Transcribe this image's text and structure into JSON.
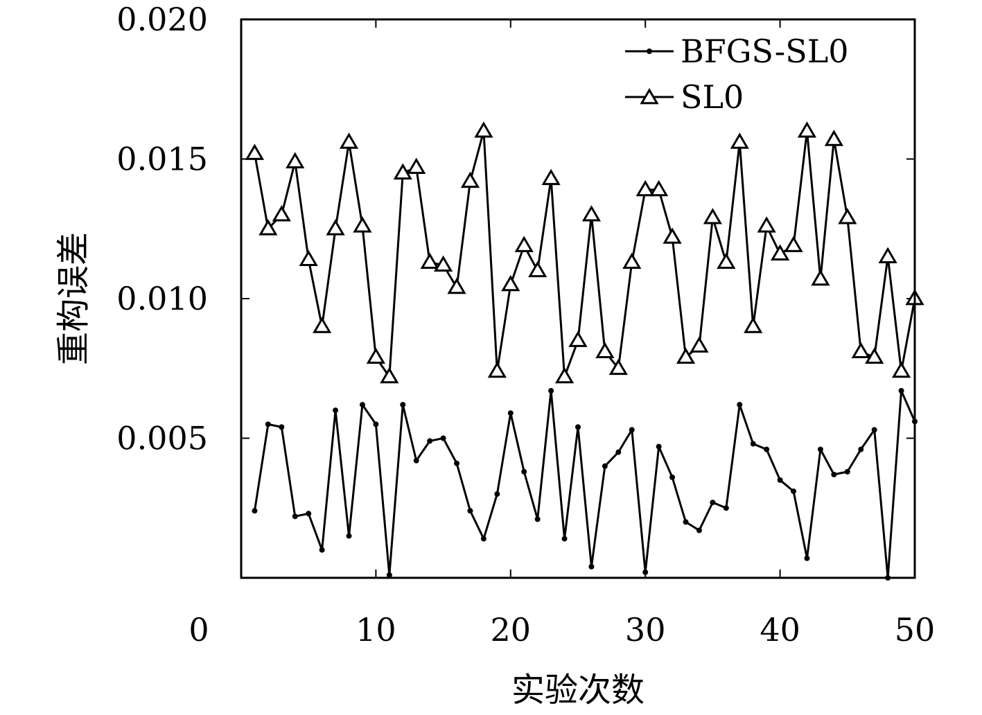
{
  "chart_data": {
    "type": "line",
    "xlabel": "实验次数",
    "ylabel": "重构误差",
    "xlim": [
      0,
      50
    ],
    "ylim": [
      0,
      0.02
    ],
    "x_ticks": [
      "0",
      "10",
      "20",
      "30",
      "40",
      "50"
    ],
    "y_ticks": [
      "0.005",
      "0.010",
      "0.015",
      "0.020"
    ],
    "grid": false,
    "legend_position": "top-right",
    "x": [
      1,
      2,
      3,
      4,
      5,
      6,
      7,
      8,
      9,
      10,
      11,
      12,
      13,
      14,
      15,
      16,
      17,
      18,
      19,
      20,
      21,
      22,
      23,
      24,
      25,
      26,
      27,
      28,
      29,
      30,
      31,
      32,
      33,
      34,
      35,
      36,
      37,
      38,
      39,
      40,
      41,
      42,
      43,
      44,
      45,
      46,
      47,
      48,
      49,
      50
    ],
    "series": [
      {
        "name": "BFGS-SL0",
        "marker": "dot",
        "values": [
          0.0024,
          0.0055,
          0.0054,
          0.0022,
          0.0023,
          0.001,
          0.006,
          0.0015,
          0.0062,
          0.0055,
          0.0001,
          0.0062,
          0.0042,
          0.0049,
          0.005,
          0.0041,
          0.0024,
          0.0014,
          0.003,
          0.0059,
          0.0038,
          0.0021,
          0.0067,
          0.0014,
          0.0054,
          0.0004,
          0.004,
          0.0045,
          0.0053,
          0.0002,
          0.0047,
          0.0036,
          0.002,
          0.0017,
          0.0027,
          0.0025,
          0.0062,
          0.0048,
          0.0046,
          0.0035,
          0.0031,
          0.0007,
          0.0046,
          0.0037,
          0.0038,
          0.0046,
          0.0053,
          0.0,
          0.0067,
          0.0056
        ]
      },
      {
        "name": "SL0",
        "marker": "triangle",
        "values": [
          0.0152,
          0.0125,
          0.013,
          0.0149,
          0.0114,
          0.009,
          0.0125,
          0.0156,
          0.0126,
          0.0079,
          0.0072,
          0.0145,
          0.0147,
          0.0113,
          0.0112,
          0.0104,
          0.0142,
          0.016,
          0.0074,
          0.0105,
          0.0119,
          0.011,
          0.0143,
          0.0072,
          0.0085,
          0.013,
          0.0081,
          0.0075,
          0.0113,
          0.0139,
          0.0139,
          0.0122,
          0.0079,
          0.0083,
          0.0129,
          0.0113,
          0.0156,
          0.009,
          0.0126,
          0.0116,
          0.0119,
          0.016,
          0.0107,
          0.0157,
          0.0129,
          0.0081,
          0.0079,
          0.0115,
          0.0074,
          0.01
        ]
      }
    ]
  }
}
